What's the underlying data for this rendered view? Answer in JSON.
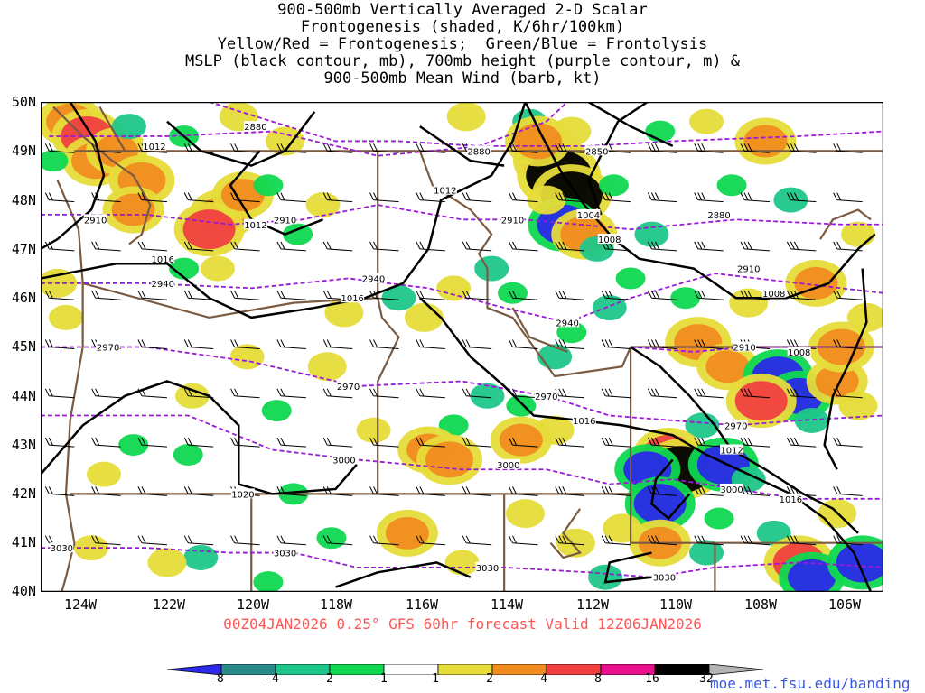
{
  "title_lines": [
    "900-500mb Vertically Averaged 2-D Scalar",
    "Frontogenesis (shaded, K/6hr/100km)",
    "Yellow/Red = Frontogenesis;  Green/Blue = Frontolysis",
    "MSLP (black contour, mb), 700mb height (purple contour, m) &",
    "900-500mb Mean Wind (barb, kt)"
  ],
  "lat_labels": [
    "50N",
    "49N",
    "48N",
    "47N",
    "46N",
    "45N",
    "44N",
    "43N",
    "42N",
    "41N",
    "40N"
  ],
  "lon_labels": [
    "124W",
    "122W",
    "120W",
    "118W",
    "116W",
    "114W",
    "112W",
    "110W",
    "108W",
    "106W"
  ],
  "footer": "00Z04JAN2026 0.25° GFS 60hr forecast Valid 12Z06JAN2026",
  "colorbar": {
    "labels": [
      "-8",
      "-4",
      "-2",
      "-1",
      "1",
      "2",
      "4",
      "8",
      "16",
      "32"
    ],
    "colors": [
      "#2a2ae8",
      "#2a8a8a",
      "#1ec68a",
      "#10d850",
      "#ffffff",
      "#e6dc3a",
      "#f08c20",
      "#f04040",
      "#e8108c",
      "#000000",
      "#b4b4b4"
    ]
  },
  "credit": "moe.met.fsu.edu/banding",
  "contour_labels": {
    "mslp": [
      {
        "text": "1012",
        "lon": -122.3,
        "lat": 49.1
      },
      {
        "text": "1012",
        "lon": -115.4,
        "lat": 48.2
      },
      {
        "text": "1012",
        "lon": -119.9,
        "lat": 47.5
      },
      {
        "text": "1004",
        "lon": -112.0,
        "lat": 47.7
      },
      {
        "text": "1008",
        "lon": -111.5,
        "lat": 47.2
      },
      {
        "text": "1016",
        "lon": -122.1,
        "lat": 46.8
      },
      {
        "text": "1016",
        "lon": -117.6,
        "lat": 46.0
      },
      {
        "text": "1008",
        "lon": -107.6,
        "lat": 46.1
      },
      {
        "text": "1008",
        "lon": -107.0,
        "lat": 44.9
      },
      {
        "text": "1016",
        "lon": -112.1,
        "lat": 43.5
      },
      {
        "text": "1012",
        "lon": -108.6,
        "lat": 42.9
      },
      {
        "text": "1016",
        "lon": -107.2,
        "lat": 41.9
      },
      {
        "text": "1020",
        "lon": -120.2,
        "lat": 42.0
      }
    ],
    "height": [
      {
        "text": "2880",
        "lon": -119.9,
        "lat": 49.5
      },
      {
        "text": "2880",
        "lon": -114.6,
        "lat": 49.0
      },
      {
        "text": "2850",
        "lon": -111.8,
        "lat": 49.0
      },
      {
        "text": "2910",
        "lon": -123.7,
        "lat": 47.6
      },
      {
        "text": "2910",
        "lon": -119.2,
        "lat": 47.6
      },
      {
        "text": "2910",
        "lon": -113.8,
        "lat": 47.6
      },
      {
        "text": "2880",
        "lon": -108.9,
        "lat": 47.7
      },
      {
        "text": "2910",
        "lon": -108.2,
        "lat": 46.6
      },
      {
        "text": "2940",
        "lon": -122.1,
        "lat": 46.3
      },
      {
        "text": "2940",
        "lon": -117.1,
        "lat": 46.4
      },
      {
        "text": "2940",
        "lon": -112.5,
        "lat": 45.5
      },
      {
        "text": "2910",
        "lon": -108.3,
        "lat": 45.0
      },
      {
        "text": "2970",
        "lon": -123.4,
        "lat": 45.0
      },
      {
        "text": "2970",
        "lon": -117.7,
        "lat": 44.2
      },
      {
        "text": "2970",
        "lon": -113.0,
        "lat": 44.0
      },
      {
        "text": "2970",
        "lon": -108.5,
        "lat": 43.4
      },
      {
        "text": "3000",
        "lon": -117.8,
        "lat": 42.7
      },
      {
        "text": "3000",
        "lon": -113.9,
        "lat": 42.6
      },
      {
        "text": "3000",
        "lon": -108.6,
        "lat": 42.1
      },
      {
        "text": "3030",
        "lon": -124.5,
        "lat": 40.9
      },
      {
        "text": "3030",
        "lon": -119.2,
        "lat": 40.8
      },
      {
        "text": "3030",
        "lon": -114.4,
        "lat": 40.5
      },
      {
        "text": "3030",
        "lon": -110.2,
        "lat": 40.3
      }
    ]
  },
  "shading_cells": [
    {
      "lon": -124.3,
      "lat": 49.6,
      "v": 5
    },
    {
      "lon": -123.9,
      "lat": 49.3,
      "v": 6
    },
    {
      "lon": -123.7,
      "lat": 48.8,
      "v": 5
    },
    {
      "lon": -123.2,
      "lat": 49.0,
      "v": 4
    },
    {
      "lon": -124.7,
      "lat": 48.8,
      "v": -1
    },
    {
      "lon": -122.6,
      "lat": 48.4,
      "v": 5
    },
    {
      "lon": -122.8,
      "lat": 47.8,
      "v": 4
    },
    {
      "lon": -122.9,
      "lat": 49.5,
      "v": -2
    },
    {
      "lon": -121.6,
      "lat": 49.3,
      "v": -1
    },
    {
      "lon": -120.7,
      "lat": 47.7,
      "v": 5
    },
    {
      "lon": -121.0,
      "lat": 47.4,
      "v": 6
    },
    {
      "lon": -120.2,
      "lat": 48.1,
      "v": 4
    },
    {
      "lon": -119.6,
      "lat": 48.3,
      "v": -1
    },
    {
      "lon": -119.2,
      "lat": 49.2,
      "v": 3
    },
    {
      "lon": -120.3,
      "lat": 49.7,
      "v": 3
    },
    {
      "lon": -118.3,
      "lat": 47.9,
      "v": 2
    },
    {
      "lon": -118.9,
      "lat": 47.3,
      "v": -1
    },
    {
      "lon": -120.8,
      "lat": 46.6,
      "v": 2
    },
    {
      "lon": -121.6,
      "lat": 46.6,
      "v": -1
    },
    {
      "lon": -124.6,
      "lat": 46.3,
      "v": 3
    },
    {
      "lon": -124.4,
      "lat": 45.6,
      "v": 2
    },
    {
      "lon": -117.8,
      "lat": 45.7,
      "v": 3
    },
    {
      "lon": -116.5,
      "lat": 46.0,
      "v": -2
    },
    {
      "lon": -115.9,
      "lat": 45.6,
      "v": 3
    },
    {
      "lon": -115.2,
      "lat": 46.2,
      "v": 2
    },
    {
      "lon": -114.3,
      "lat": 46.6,
      "v": -2
    },
    {
      "lon": -113.8,
      "lat": 46.1,
      "v": -1
    },
    {
      "lon": -114.9,
      "lat": 49.7,
      "v": 3
    },
    {
      "lon": -113.4,
      "lat": 49.6,
      "v": -2
    },
    {
      "lon": -112.4,
      "lat": 49.4,
      "v": 3
    },
    {
      "lon": -112.9,
      "lat": 48.8,
      "v": 7
    },
    {
      "lon": -112.7,
      "lat": 48.5,
      "v": 9
    },
    {
      "lon": -112.4,
      "lat": 48.1,
      "v": 8
    },
    {
      "lon": -113.2,
      "lat": 49.2,
      "v": 5
    },
    {
      "lon": -112.6,
      "lat": 47.5,
      "v": -6
    },
    {
      "lon": -112.1,
      "lat": 47.3,
      "v": 5
    },
    {
      "lon": -111.8,
      "lat": 47.0,
      "v": -2
    },
    {
      "lon": -111.0,
      "lat": 46.4,
      "v": -1
    },
    {
      "lon": -111.5,
      "lat": 45.8,
      "v": -2
    },
    {
      "lon": -112.4,
      "lat": 45.3,
      "v": -1
    },
    {
      "lon": -112.8,
      "lat": 44.8,
      "v": -2
    },
    {
      "lon": -113.6,
      "lat": 43.8,
      "v": -1
    },
    {
      "lon": -114.4,
      "lat": 44.0,
      "v": -2
    },
    {
      "lon": -115.2,
      "lat": 43.4,
      "v": -1
    },
    {
      "lon": -112.8,
      "lat": 43.3,
      "v": 3
    },
    {
      "lon": -113.6,
      "lat": 43.1,
      "v": 4
    },
    {
      "lon": -115.8,
      "lat": 42.9,
      "v": 4
    },
    {
      "lon": -115.3,
      "lat": 42.7,
      "v": 5
    },
    {
      "lon": -117.1,
      "lat": 43.3,
      "v": 2
    },
    {
      "lon": -110.3,
      "lat": 49.4,
      "v": -1
    },
    {
      "lon": -109.2,
      "lat": 49.6,
      "v": 2
    },
    {
      "lon": -107.8,
      "lat": 49.2,
      "v": 4
    },
    {
      "lon": -108.6,
      "lat": 48.3,
      "v": -1
    },
    {
      "lon": -107.2,
      "lat": 48.0,
      "v": -2
    },
    {
      "lon": -105.6,
      "lat": 47.3,
      "v": 2
    },
    {
      "lon": -109.7,
      "lat": 46.0,
      "v": -1
    },
    {
      "lon": -108.2,
      "lat": 45.9,
      "v": 3
    },
    {
      "lon": -106.6,
      "lat": 46.3,
      "v": 4
    },
    {
      "lon": -109.4,
      "lat": 45.1,
      "v": 5
    },
    {
      "lon": -108.7,
      "lat": 44.6,
      "v": 4
    },
    {
      "lon": -107.5,
      "lat": 44.4,
      "v": -6
    },
    {
      "lon": -107.0,
      "lat": 44.0,
      "v": -5
    },
    {
      "lon": -106.1,
      "lat": 44.3,
      "v": 4
    },
    {
      "lon": -107.9,
      "lat": 43.9,
      "v": 6
    },
    {
      "lon": -106.7,
      "lat": 43.5,
      "v": -2
    },
    {
      "lon": -105.6,
      "lat": 43.8,
      "v": 3
    },
    {
      "lon": -109.3,
      "lat": 43.4,
      "v": -2
    },
    {
      "lon": -110.1,
      "lat": 42.8,
      "v": 6
    },
    {
      "lon": -109.8,
      "lat": 42.5,
      "v": 8
    },
    {
      "lon": -110.6,
      "lat": 42.5,
      "v": -5
    },
    {
      "lon": -108.8,
      "lat": 42.6,
      "v": -6
    },
    {
      "lon": -108.2,
      "lat": 42.3,
      "v": -2
    },
    {
      "lon": -110.3,
      "lat": 41.8,
      "v": -6
    },
    {
      "lon": -111.2,
      "lat": 41.3,
      "v": 3
    },
    {
      "lon": -110.3,
      "lat": 41.0,
      "v": 4
    },
    {
      "lon": -108.9,
      "lat": 41.5,
      "v": -1
    },
    {
      "lon": -107.6,
      "lat": 41.2,
      "v": -2
    },
    {
      "lon": -107.0,
      "lat": 40.6,
      "v": 6
    },
    {
      "lon": -106.7,
      "lat": 40.3,
      "v": -5
    },
    {
      "lon": -105.5,
      "lat": 40.6,
      "v": -6
    },
    {
      "lon": -106.1,
      "lat": 41.6,
      "v": 3
    },
    {
      "lon": -111.6,
      "lat": 40.3,
      "v": -2
    },
    {
      "lon": -112.3,
      "lat": 41.0,
      "v": 3
    },
    {
      "lon": -113.5,
      "lat": 41.6,
      "v": 3
    },
    {
      "lon": -115.0,
      "lat": 40.6,
      "v": 2
    },
    {
      "lon": -116.3,
      "lat": 41.2,
      "v": 4
    },
    {
      "lon": -118.1,
      "lat": 41.1,
      "v": -1
    },
    {
      "lon": -119.6,
      "lat": 40.2,
      "v": -1
    },
    {
      "lon": -121.2,
      "lat": 40.7,
      "v": -2
    },
    {
      "lon": -122.0,
      "lat": 40.6,
      "v": 3
    },
    {
      "lon": -123.8,
      "lat": 40.9,
      "v": 2
    },
    {
      "lon": -123.5,
      "lat": 42.4,
      "v": 2
    },
    {
      "lon": -121.4,
      "lat": 44.0,
      "v": 2
    },
    {
      "lon": -119.4,
      "lat": 43.7,
      "v": -1
    },
    {
      "lon": -118.2,
      "lat": 44.6,
      "v": 3
    },
    {
      "lon": -120.1,
      "lat": 44.8,
      "v": 2
    },
    {
      "lon": -122.8,
      "lat": 43.0,
      "v": -1
    },
    {
      "lon": -121.5,
      "lat": 42.8,
      "v": -1
    },
    {
      "lon": -119.0,
      "lat": 42.0,
      "v": -1
    },
    {
      "lon": -109.2,
      "lat": 40.8,
      "v": -2
    },
    {
      "lon": -113.0,
      "lat": 48.0,
      "v": 3
    },
    {
      "lon": -111.4,
      "lat": 48.3,
      "v": -1
    },
    {
      "lon": -110.5,
      "lat": 47.3,
      "v": -2
    },
    {
      "lon": -106.0,
      "lat": 45.0,
      "v": 5
    },
    {
      "lon": -105.4,
      "lat": 45.6,
      "v": 3
    }
  ],
  "barb_lats": [
    49.0,
    48.0,
    47.0,
    46.0,
    45.0,
    44.0,
    43.0,
    42.0,
    41.0
  ],
  "barb_lon_start": -124.5,
  "barb_lon_step": 1.1
}
